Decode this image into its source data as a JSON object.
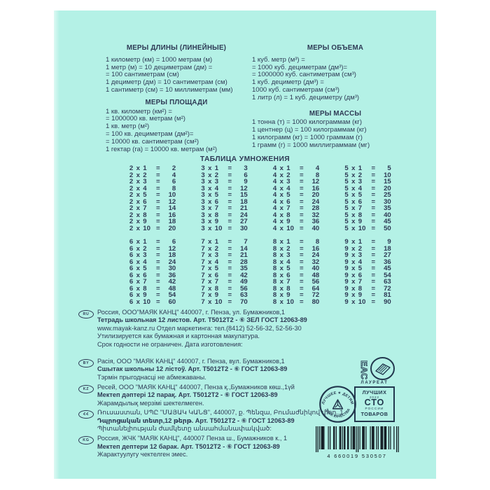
{
  "cover": {
    "background": "#b4f1e6",
    "ink_color": "#2e3a55"
  },
  "measures_sections": [
    {
      "title": "МЕРЫ ДЛИНЫ (ЛИНЕЙНЫЕ)",
      "lines": [
        "1 километр (км) = 1000 метрам (м)",
        "1 метр (м) = 10 дециметрам (дм) =",
        "= 100 сантиметрам (см)",
        "1 дециметр (дм) = 10 сантиметрам (см)",
        "1 сантиметр (см) = 10 миллиметрам (мм)"
      ]
    },
    {
      "title": "МЕРЫ ПЛОЩАДИ",
      "lines": [
        "1 кв. километр (км²) =",
        "= 1000000 кв. метрам (м²)",
        "1 кв. метр (м²)",
        "= 100 кв. дециметрам (дм²)=",
        "= 10000 кв. сантиметрам (см²)",
        "1 гектар (га) = 10000 кв. метрам (м²)"
      ]
    },
    {
      "title": "МЕРЫ ОБЪЕМА",
      "lines": [
        "1 куб. метр (м³) =",
        "= 1000 куб. дециметрам (дм³)=",
        "= 1000000 куб. сантиметрам (см³)",
        "1 куб. дециметр (дм³) =",
        "1000 куб. сантиметрам (см³)",
        "1 литр (л) = 1 куб. дециметру (дм³)"
      ]
    },
    {
      "title": "МЕРЫ МАССЫ",
      "lines": [
        "1 тонна (т) = 1000 килограммам (кг)",
        "1 центнер (ц) = 100 килограммам (кг)",
        "1 килограмм (кг) = 1000 граммам (г)",
        "1 грамм (г) = 1000 миллиграммам (мг)"
      ]
    }
  ],
  "multiplication": {
    "title": "ТАБЛИЦА УМНОЖЕНИЯ",
    "times": "х",
    "equals": "=",
    "groups": [
      [
        {
          "factor": "2",
          "rows": [
            [
              "1",
              "2"
            ],
            [
              "2",
              "4"
            ],
            [
              "3",
              "6"
            ],
            [
              "4",
              "8"
            ],
            [
              "5",
              "10"
            ],
            [
              "6",
              "12"
            ],
            [
              "7",
              "14"
            ],
            [
              "8",
              "16"
            ],
            [
              "9",
              "18"
            ],
            [
              "10",
              "20"
            ]
          ]
        },
        {
          "factor": "3",
          "rows": [
            [
              "1",
              "3"
            ],
            [
              "2",
              "6"
            ],
            [
              "3",
              "9"
            ],
            [
              "4",
              "12"
            ],
            [
              "5",
              "15"
            ],
            [
              "6",
              "18"
            ],
            [
              "7",
              "21"
            ],
            [
              "8",
              "24"
            ],
            [
              "9",
              "27"
            ],
            [
              "10",
              "30"
            ]
          ]
        },
        {
          "factor": "4",
          "rows": [
            [
              "1",
              "4"
            ],
            [
              "2",
              "8"
            ],
            [
              "3",
              "12"
            ],
            [
              "4",
              "16"
            ],
            [
              "5",
              "20"
            ],
            [
              "6",
              "24"
            ],
            [
              "7",
              "28"
            ],
            [
              "8",
              "32"
            ],
            [
              "9",
              "36"
            ],
            [
              "10",
              "40"
            ]
          ]
        },
        {
          "factor": "5",
          "rows": [
            [
              "1",
              "5"
            ],
            [
              "2",
              "10"
            ],
            [
              "3",
              "15"
            ],
            [
              "4",
              "20"
            ],
            [
              "5",
              "25"
            ],
            [
              "6",
              "30"
            ],
            [
              "7",
              "35"
            ],
            [
              "8",
              "40"
            ],
            [
              "9",
              "45"
            ],
            [
              "10",
              "50"
            ]
          ]
        }
      ],
      [
        {
          "factor": "6",
          "rows": [
            [
              "1",
              "6"
            ],
            [
              "2",
              "12"
            ],
            [
              "3",
              "18"
            ],
            [
              "4",
              "24"
            ],
            [
              "5",
              "30"
            ],
            [
              "6",
              "36"
            ],
            [
              "7",
              "42"
            ],
            [
              "8",
              "48"
            ],
            [
              "9",
              "54"
            ],
            [
              "10",
              "60"
            ]
          ]
        },
        {
          "factor": "7",
          "rows": [
            [
              "1",
              "7"
            ],
            [
              "2",
              "14"
            ],
            [
              "3",
              "21"
            ],
            [
              "4",
              "28"
            ],
            [
              "5",
              "35"
            ],
            [
              "6",
              "42"
            ],
            [
              "7",
              "49"
            ],
            [
              "8",
              "56"
            ],
            [
              "9",
              "63"
            ],
            [
              "10",
              "70"
            ]
          ]
        },
        {
          "factor": "8",
          "rows": [
            [
              "1",
              "8"
            ],
            [
              "2",
              "16"
            ],
            [
              "3",
              "24"
            ],
            [
              "4",
              "32"
            ],
            [
              "5",
              "40"
            ],
            [
              "6",
              "48"
            ],
            [
              "7",
              "56"
            ],
            [
              "8",
              "64"
            ],
            [
              "9",
              "72"
            ],
            [
              "10",
              "80"
            ]
          ]
        },
        {
          "factor": "9",
          "rows": [
            [
              "1",
              "9"
            ],
            [
              "2",
              "18"
            ],
            [
              "3",
              "27"
            ],
            [
              "4",
              "36"
            ],
            [
              "5",
              "45"
            ],
            [
              "6",
              "54"
            ],
            [
              "7",
              "63"
            ],
            [
              "8",
              "72"
            ],
            [
              "9",
              "81"
            ],
            [
              "10",
              "90"
            ]
          ]
        }
      ]
    ]
  },
  "footer_blocks": [
    {
      "code": "RU",
      "lines": [
        {
          "text": "Россия, ООО\"МАЯК КАНЦ\" 440007, г. Пенза, ул. Бумажников,1",
          "bold": false
        },
        {
          "text": "Тетрадь школьная 12 листов. Арт. Т5012Т2 - ⑥ ЗЕЛ ГОСТ 12063-89",
          "bold": true
        },
        {
          "text": "www.mayak-kanz.ru Отдел маркетинга: тел.(8412) 52-56-32, 52-56-30",
          "bold": false
        },
        {
          "text": "Утилизируется как бумажная и картонная макулатура.",
          "bold": false
        },
        {
          "text": "Срок годности не ограничен. Дата изготовления:",
          "bold": false
        }
      ]
    },
    {
      "code": "BY",
      "lines": [
        {
          "text": "Расія, ООО \"МАЯК КАНЦ\" 440007, г. Пенза, вул. Бумажников,1",
          "bold": false
        },
        {
          "text": "Сшытак школьны 12 лістоў. Арт. Т5012Т2 - ⑥ ГОСТ 12063-89",
          "bold": true
        },
        {
          "text": "Тэрмін прыгоднасці не абмежаваны.",
          "bold": false
        }
      ]
    },
    {
      "code": "KZ",
      "lines": [
        {
          "text": "Ресей, ООО \"МАЯК КАНЦ\" 440007, Пенза қ.,Бумажников көш.,1үй",
          "bold": false
        },
        {
          "text": "Мектеп дәптері 12 парақ. Арт. Т5012Т2 - ⑥ ГОСТ 12063-89",
          "bold": true
        },
        {
          "text": "Жарамдылық мерзімі шектелмеген.",
          "bold": false
        }
      ]
    },
    {
      "code": "ՀՀ",
      "lines": [
        {
          "text": "Ռուսաստան, ՍՊԸ \"ՄԱՅԱԿ ԿԱՆՑ\", 440007, ք. Պենզա, Բումաժնիկով փող.,1",
          "bold": false
        },
        {
          "text": "Դպրոցական տետր,12 թերթ. Арт. Т5012Т2 - ⑥ ГОСТ 12063-89",
          "bold": true
        },
        {
          "text": "Պիտանելիության ժամկետը անսահմանափակված:",
          "bold": false
        }
      ]
    },
    {
      "code": "KG",
      "lines": [
        {
          "text": "Россия, ЖЧК \"МАЯК КАНЦ\", 440007 Пенза ш., Бумажников к., 1",
          "bold": false
        },
        {
          "text": "Мектеп дептери 12 барак. Арт. Т5012Т2 - ⑥ ГОСТ 12063-89",
          "bold": true
        },
        {
          "text": "Жарактуулугу чектелген эмес.",
          "bold": false
        }
      ]
    }
  ],
  "certification": {
    "eac_label": "ЕАС",
    "laureate_label": "ЛАУРЕАТ",
    "round_stamp": {
      "top_text": "ЛУЧШЕЕ ★ ДЕТЯМ",
      "bottom_text": "ЗНАК КАЧЕСТВА"
    },
    "square_stamp": {
      "line1": "ЛУЧШИХ",
      "year": "2022",
      "sto": "СТО",
      "rossii": "РОССИИ",
      "line4": "ТОВАРОВ"
    }
  },
  "barcode": {
    "digits": "4660019530507",
    "display": "4 660019 530507"
  }
}
